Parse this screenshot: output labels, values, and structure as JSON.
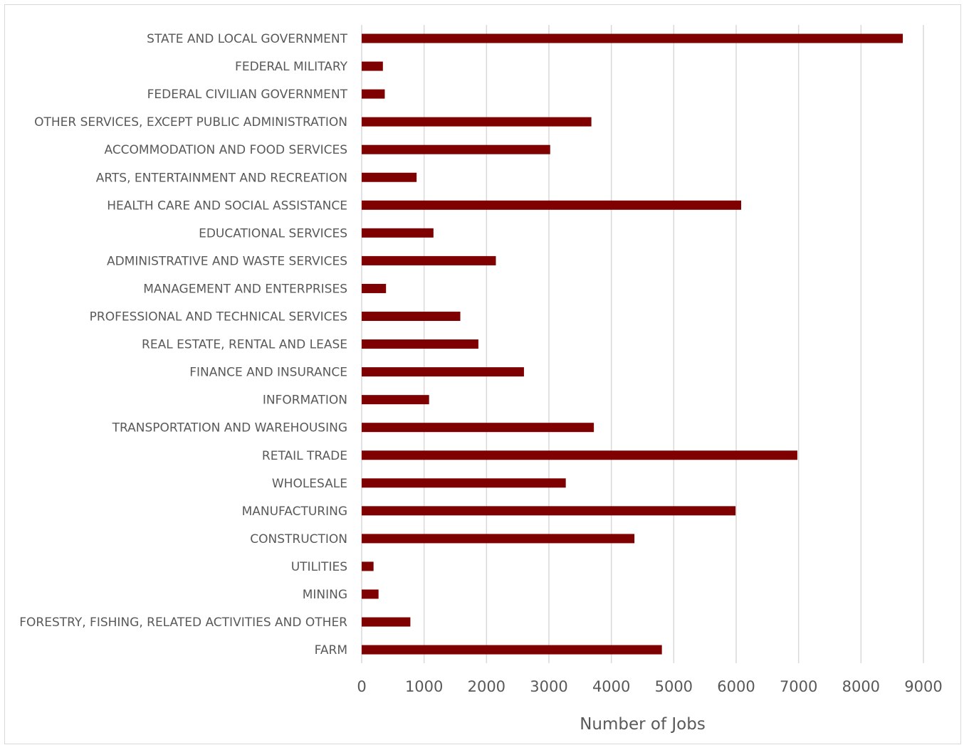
{
  "chart_data": {
    "type": "bar",
    "orientation": "horizontal",
    "title": "",
    "xlabel": "Number of Jobs",
    "ylabel": "",
    "xlim": [
      0,
      9000
    ],
    "x_ticks": [
      "0",
      "1000",
      "2000",
      "3000",
      "4000",
      "5000",
      "6000",
      "7000",
      "8000",
      "9000"
    ],
    "grid": true,
    "legend": "none",
    "bar_color": "#7f0000",
    "categories": [
      "STATE AND LOCAL GOVERNMENT",
      "FEDERAL MILITARY",
      "FEDERAL CIVILIAN GOVERNMENT",
      "OTHER SERVICES, EXCEPT PUBLIC ADMINISTRATION",
      "ACCOMMODATION AND FOOD SERVICES",
      "ARTS, ENTERTAINMENT AND RECREATION",
      "HEALTH CARE AND SOCIAL ASSISTANCE",
      "EDUCATIONAL SERVICES",
      "ADMINISTRATIVE AND WASTE SERVICES",
      "MANAGEMENT AND ENTERPRISES",
      "PROFESSIONAL AND TECHNICAL SERVICES",
      "REAL ESTATE, RENTAL AND LEASE",
      "FINANCE AND INSURANCE",
      "INFORMATION",
      "TRANSPORTATION AND WAREHOUSING",
      "RETAIL TRADE",
      "WHOLESALE",
      "MANUFACTURING",
      "CONSTRUCTION",
      "UTILITIES",
      "MINING",
      "FORESTRY, FISHING, RELATED ACTIVITIES AND OTHER",
      "FARM"
    ],
    "values": [
      8670,
      340,
      370,
      3680,
      3020,
      880,
      6080,
      1150,
      2150,
      390,
      1580,
      1870,
      2600,
      1080,
      3720,
      6980,
      3270,
      5990,
      4370,
      190,
      270,
      780,
      4810
    ]
  }
}
